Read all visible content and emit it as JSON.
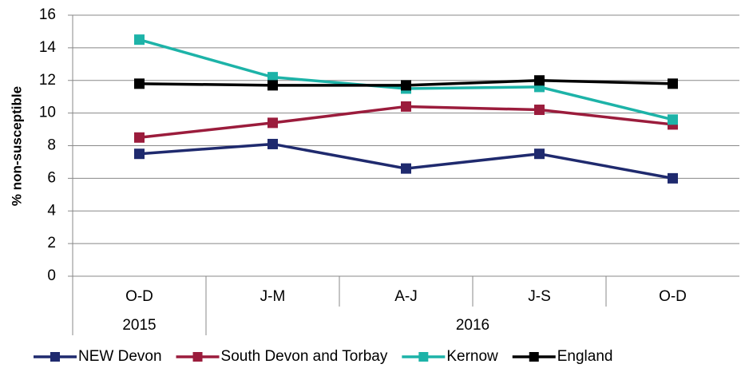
{
  "chart_data": {
    "type": "line",
    "y_label": "% non-susceptible",
    "categories": [
      "O-D",
      "J-M",
      "A-J",
      "J-S",
      "O-D"
    ],
    "category_years": [
      "2015",
      "2016",
      null,
      null,
      null
    ],
    "series": [
      {
        "name": "NEW Devon",
        "color": "#1f2a6e",
        "values": [
          7.5,
          8.1,
          6.6,
          7.5,
          6.0
        ]
      },
      {
        "name": "South Devon and Torbay",
        "color": "#9b1c3c",
        "values": [
          8.5,
          9.4,
          10.4,
          10.2,
          9.3
        ]
      },
      {
        "name": "Kernow",
        "color": "#1db3a8",
        "values": [
          14.5,
          12.2,
          11.5,
          11.6,
          9.6
        ]
      },
      {
        "name": "England",
        "color": "#000000",
        "values": [
          11.8,
          11.7,
          11.7,
          12.0,
          11.8
        ]
      }
    ],
    "ylim": [
      0,
      16
    ],
    "yticks": [
      0,
      2,
      4,
      6,
      8,
      10,
      12,
      14,
      16
    ],
    "grid": true,
    "legend": "bottom"
  }
}
